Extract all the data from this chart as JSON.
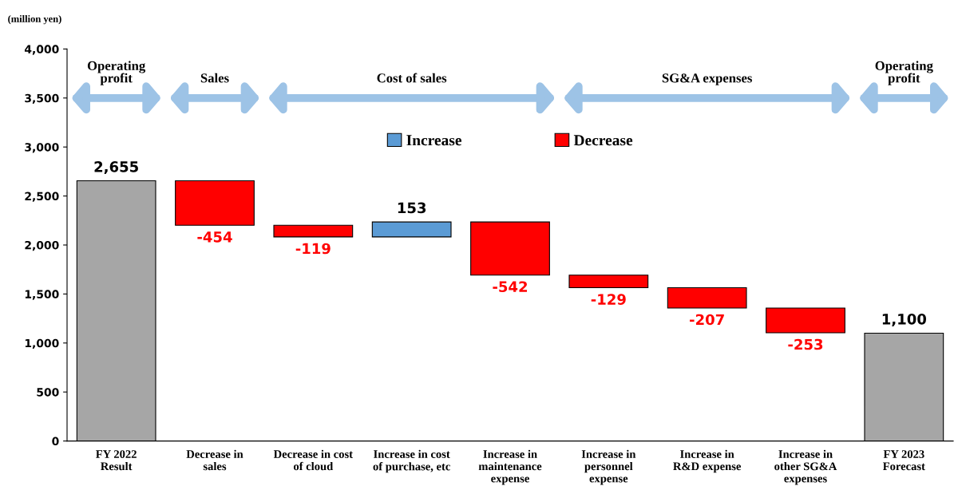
{
  "chart_data": {
    "type": "bar",
    "ylabel": "(million yen)",
    "categories": [
      "FY 2022\nResult",
      "Decrease in\nsales",
      "Decrease in cost\nof cloud",
      "Increase in cost\nof purchase, etc",
      "Increase in\nmaintenance\nexpense",
      "Increase in\npersonnel\nexpense",
      "Increase in\nR&D expense",
      "Increase in\nother SG&A\nexpenses",
      "FY 2023\nForecast"
    ],
    "series": [
      {
        "color": "#a6a6a6",
        "base": [
          0,
          null,
          null,
          null,
          null,
          null,
          null,
          null,
          0
        ],
        "values": [
          2655,
          null,
          null,
          null,
          null,
          null,
          null,
          null,
          1100
        ],
        "value_labels": [
          "2,655",
          null,
          null,
          null,
          null,
          null,
          null,
          null,
          "1,100"
        ]
      },
      {
        "name": "Increase",
        "color": "#5b9bd5",
        "base": [
          null,
          null,
          null,
          2082,
          null,
          null,
          null,
          null,
          null
        ],
        "values": [
          null,
          null,
          null,
          153,
          null,
          null,
          null,
          null,
          null
        ],
        "value_labels": [
          null,
          null,
          null,
          "153",
          null,
          null,
          null,
          null,
          null
        ]
      },
      {
        "name": "Decrease",
        "color": "#ff0000",
        "base": [
          null,
          2655,
          2201,
          null,
          2235,
          1693,
          1564,
          1357,
          null
        ],
        "values": [
          null,
          -454,
          -119,
          null,
          -542,
          -129,
          -207,
          -253,
          null
        ],
        "value_labels": [
          null,
          "-454",
          "-119",
          null,
          "-542",
          "-129",
          "-207",
          "-253",
          null
        ]
      }
    ],
    "ylim": [
      0,
      4000
    ],
    "yticks": [
      0,
      500,
      {
        "value": 1000,
        "label": "1,000"
      },
      {
        "value": 1500,
        "label": "1,500"
      },
      {
        "value": 2000,
        "label": "2,000"
      },
      {
        "value": 2500,
        "label": "2,500"
      },
      {
        "value": 3000,
        "label": "3,000"
      },
      {
        "value": 3500,
        "label": "3,500"
      },
      {
        "value": 4000,
        "label": "4,000"
      }
    ],
    "annotations": [
      "Operating\nprofit",
      "Sales",
      "Cost of sales",
      "SG&A expenses",
      "Operating\nprofit"
    ],
    "legend": "top",
    "grid": false
  }
}
